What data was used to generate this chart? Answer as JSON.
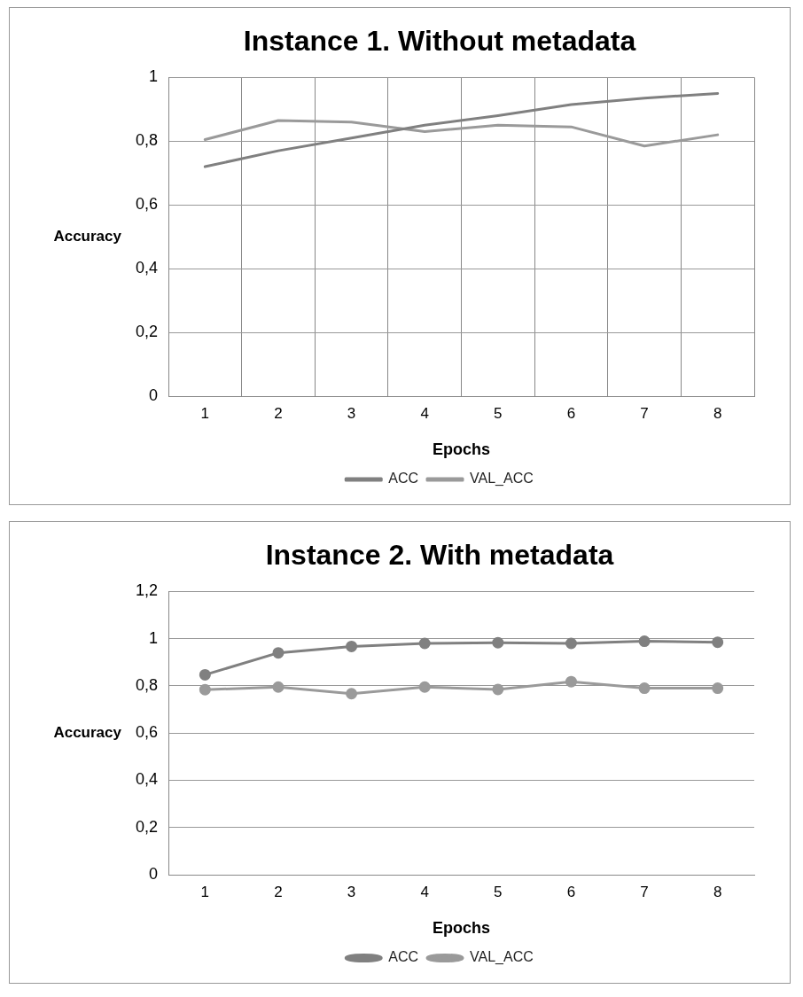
{
  "chart_data": [
    {
      "type": "line",
      "title": "Instance 1. Without metadata",
      "xlabel": "Epochs",
      "ylabel": "Accuracy",
      "categories": [
        "1",
        "2",
        "3",
        "4",
        "5",
        "6",
        "7",
        "8"
      ],
      "series": [
        {
          "name": "ACC",
          "color": "#808080",
          "values": [
            0.72,
            0.77,
            0.81,
            0.85,
            0.88,
            0.915,
            0.935,
            0.95
          ]
        },
        {
          "name": "VAL_ACC",
          "color": "#9a9a9a",
          "values": [
            0.805,
            0.865,
            0.86,
            0.83,
            0.85,
            0.845,
            0.785,
            0.82
          ]
        }
      ],
      "ylim": [
        0,
        1
      ],
      "yticks": [
        {
          "value": 0,
          "label": "0"
        },
        {
          "value": 0.2,
          "label": "0,2"
        },
        {
          "value": 0.4,
          "label": "0,4"
        },
        {
          "value": 0.6,
          "label": "0,6"
        },
        {
          "value": 0.8,
          "label": "0,8"
        },
        {
          "value": 1,
          "label": "1"
        }
      ],
      "grid": true,
      "legend": "bottom",
      "marker": "none",
      "line_style": "solid"
    },
    {
      "type": "line",
      "title": "Instance 2. With metadata",
      "xlabel": "Epochs",
      "ylabel": "Accuracy",
      "categories": [
        "1",
        "2",
        "3",
        "4",
        "5",
        "6",
        "7",
        "8"
      ],
      "series": [
        {
          "name": "ACC",
          "color": "#808080",
          "values": [
            0.847,
            0.94,
            0.967,
            0.98,
            0.983,
            0.98,
            0.989,
            0.985
          ]
        },
        {
          "name": "VAL_ACC",
          "color": "#9a9a9a",
          "values": [
            0.784,
            0.795,
            0.767,
            0.795,
            0.785,
            0.818,
            0.79,
            0.79
          ]
        }
      ],
      "ylim": [
        0,
        1.2
      ],
      "yticks": [
        {
          "value": 0,
          "label": "0"
        },
        {
          "value": 0.2,
          "label": "0,2"
        },
        {
          "value": 0.4,
          "label": "0,4"
        },
        {
          "value": 0.6,
          "label": "0,6"
        },
        {
          "value": 0.8,
          "label": "0,8"
        },
        {
          "value": 1,
          "label": "1"
        },
        {
          "value": 1.2,
          "label": "1,2"
        }
      ],
      "grid": "y",
      "legend": "bottom",
      "marker": "circle",
      "line_style": "solid"
    }
  ]
}
